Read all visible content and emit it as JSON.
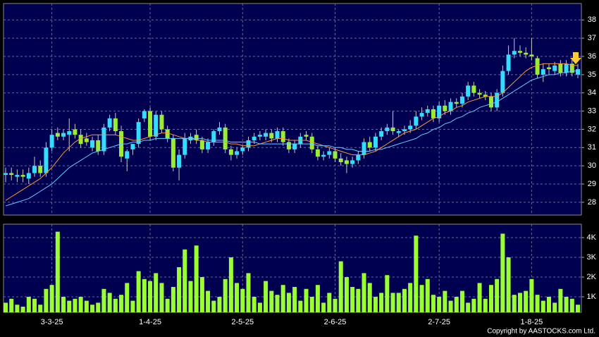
{
  "chart_data": [
    {
      "type": "candlestick",
      "ylim": [
        27.3,
        38.9
      ],
      "yticks": [
        28,
        29,
        30,
        31,
        32,
        33,
        34,
        35,
        36,
        37,
        38
      ],
      "grid": true,
      "up_color": "#33ddff",
      "down_color": "#99ee33",
      "wick_color": "#c8c8c8",
      "open": [
        29.5,
        29.6,
        29.4,
        29.5,
        29.3,
        29.6,
        30.0,
        29.6,
        31.0,
        31.8,
        31.6,
        31.7,
        32.0,
        31.7,
        31.5,
        31.0,
        31.4,
        30.8,
        32.1,
        32.6,
        31.9,
        30.4,
        30.9,
        31.2,
        32.6,
        33.0,
        31.6,
        32.8,
        32.0,
        31.5,
        29.9,
        30.6,
        31.4,
        31.7,
        31.4,
        30.9,
        31.3,
        31.9,
        32.1,
        30.9,
        30.6,
        30.8,
        31.0,
        31.4,
        31.6,
        31.6,
        31.8,
        31.5,
        31.9,
        31.3,
        30.9,
        31.2,
        31.7,
        31.6,
        30.9,
        30.5,
        30.6,
        30.8,
        30.4,
        30.3,
        30.1,
        30.3,
        30.6,
        31.3,
        31.0,
        31.6,
        31.9,
        32.1,
        31.8,
        31.9,
        32.0,
        32.2,
        32.7,
        32.9,
        33.1,
        32.6,
        33.3,
        33.0,
        33.5,
        33.4,
        33.8,
        34.4,
        34.0,
        33.9,
        33.8,
        33.2,
        34.0,
        35.2,
        36.1,
        36.3,
        36.2,
        36.1,
        35.9,
        35.0,
        35.4,
        35.2,
        35.6,
        35.1,
        35.6,
        35.0
      ],
      "high": [
        29.9,
        29.9,
        29.8,
        29.8,
        29.9,
        30.5,
        30.3,
        31.3,
        32.0,
        32.1,
        32.0,
        32.6,
        32.3,
        32.0,
        31.8,
        31.6,
        31.7,
        32.3,
        32.8,
        32.9,
        32.2,
        30.9,
        31.2,
        32.6,
        33.1,
        33.2,
        33.0,
        33.0,
        32.2,
        31.7,
        30.9,
        31.8,
        31.8,
        32.0,
        31.6,
        31.5,
        32.0,
        32.4,
        32.3,
        31.1,
        31.0,
        31.1,
        31.6,
        31.8,
        31.9,
        32.0,
        32.0,
        32.1,
        32.1,
        31.5,
        31.4,
        31.8,
        31.9,
        31.8,
        31.1,
        30.8,
        31.0,
        31.0,
        30.7,
        30.5,
        30.5,
        30.8,
        31.5,
        31.6,
        31.8,
        32.1,
        32.3,
        33.0,
        32.0,
        32.2,
        32.5,
        33.0,
        33.2,
        33.3,
        33.3,
        33.5,
        33.6,
        33.7,
        33.7,
        34.0,
        34.6,
        34.6,
        34.2,
        34.1,
        34.0,
        34.2,
        35.5,
        36.6,
        37.0,
        36.6,
        36.5,
        37.0,
        36.0,
        35.6,
        35.6,
        35.7,
        35.8,
        35.8,
        35.8,
        35.6
      ],
      "low": [
        29.1,
        29.2,
        29.1,
        29.1,
        29.0,
        29.4,
        29.4,
        29.4,
        30.8,
        31.4,
        31.4,
        30.8,
        31.5,
        31.0,
        31.1,
        30.8,
        30.6,
        30.6,
        31.9,
        31.7,
        30.2,
        29.7,
        30.6,
        31.0,
        32.4,
        31.4,
        31.4,
        31.8,
        31.3,
        29.7,
        29.2,
        30.4,
        31.2,
        31.2,
        30.7,
        30.7,
        31.1,
        31.7,
        30.7,
        30.3,
        30.4,
        30.6,
        30.8,
        31.2,
        31.4,
        31.4,
        31.3,
        31.3,
        31.1,
        30.7,
        30.7,
        31.0,
        31.4,
        30.7,
        30.3,
        30.3,
        30.4,
        30.2,
        30.0,
        29.6,
        29.9,
        30.1,
        30.4,
        30.8,
        30.8,
        31.4,
        31.7,
        31.7,
        31.6,
        31.7,
        31.8,
        32.0,
        32.5,
        32.7,
        32.4,
        32.4,
        32.8,
        32.8,
        33.2,
        33.2,
        33.6,
        33.8,
        33.7,
        33.6,
        33.0,
        33.0,
        33.8,
        35.0,
        35.9,
        36.0,
        35.9,
        35.8,
        34.8,
        34.6,
        35.0,
        35.0,
        34.9,
        34.9,
        34.9,
        34.8
      ],
      "close": [
        29.6,
        29.5,
        29.5,
        29.4,
        29.6,
        30.0,
        29.6,
        31.0,
        31.7,
        31.6,
        31.8,
        31.9,
        31.7,
        31.2,
        31.3,
        31.4,
        30.8,
        32.1,
        32.6,
        31.9,
        30.5,
        30.8,
        31.2,
        32.4,
        33.0,
        31.6,
        32.8,
        32.0,
        31.5,
        29.9,
        30.6,
        31.5,
        31.6,
        31.4,
        30.9,
        31.3,
        31.9,
        32.1,
        30.9,
        30.6,
        30.8,
        31.0,
        31.4,
        31.6,
        31.7,
        31.8,
        31.5,
        31.9,
        31.3,
        30.9,
        31.2,
        31.6,
        31.6,
        30.9,
        30.5,
        30.6,
        30.8,
        30.4,
        30.2,
        30.1,
        30.3,
        30.6,
        31.3,
        31.0,
        31.6,
        31.9,
        32.1,
        31.9,
        31.9,
        32.0,
        32.2,
        32.7,
        32.9,
        33.1,
        32.6,
        33.3,
        33.0,
        33.5,
        33.4,
        33.8,
        34.4,
        34.0,
        33.9,
        33.8,
        33.2,
        34.0,
        35.2,
        36.1,
        36.3,
        36.2,
        36.1,
        36.0,
        35.0,
        35.3,
        35.3,
        35.5,
        35.1,
        35.6,
        35.1,
        35.3
      ],
      "lines": [
        {
          "color": "#ff9933",
          "values": [
            28.1,
            28.3,
            28.5,
            28.7,
            28.9,
            29.1,
            29.3,
            29.6,
            29.9,
            30.3,
            30.7,
            31.0,
            31.3,
            31.5,
            31.6,
            31.7,
            31.7,
            31.7,
            31.7,
            31.7,
            31.6,
            31.5,
            31.4,
            31.4,
            31.5,
            31.6,
            31.7,
            31.8,
            31.8,
            31.7,
            31.6,
            31.5,
            31.5,
            31.4,
            31.4,
            31.3,
            31.3,
            31.3,
            31.3,
            31.2,
            31.2,
            31.1,
            31.1,
            31.1,
            31.2,
            31.3,
            31.4,
            31.5,
            31.5,
            31.4,
            31.4,
            31.4,
            31.4,
            31.3,
            31.2,
            31.1,
            31.0,
            30.9,
            30.8,
            30.7,
            30.6,
            30.6,
            30.6,
            30.7,
            30.8,
            31.0,
            31.2,
            31.4,
            31.6,
            31.8,
            31.9,
            32.0,
            32.2,
            32.4,
            32.6,
            32.7,
            32.9,
            33.0,
            33.2,
            33.3,
            33.5,
            33.6,
            33.7,
            33.8,
            33.8,
            33.8,
            34.0,
            34.3,
            34.6,
            34.9,
            35.2,
            35.4,
            35.5,
            35.6,
            35.6,
            35.6,
            35.6,
            35.6,
            35.5,
            35.5
          ]
        },
        {
          "color": "#66ccff",
          "values": [
            27.8,
            27.9,
            28.0,
            28.1,
            28.2,
            28.4,
            28.6,
            28.8,
            29.0,
            29.3,
            29.6,
            29.9,
            30.1,
            30.3,
            30.5,
            30.7,
            30.8,
            30.9,
            31.0,
            31.1,
            31.2,
            31.2,
            31.3,
            31.3,
            31.4,
            31.4,
            31.5,
            31.5,
            31.5,
            31.5,
            31.5,
            31.5,
            31.5,
            31.5,
            31.5,
            31.4,
            31.4,
            31.4,
            31.4,
            31.3,
            31.3,
            31.3,
            31.3,
            31.3,
            31.2,
            31.2,
            31.2,
            31.2,
            31.2,
            31.2,
            31.2,
            31.2,
            31.2,
            31.2,
            31.1,
            31.1,
            31.1,
            31.0,
            31.0,
            30.9,
            30.9,
            30.8,
            30.8,
            30.8,
            30.9,
            30.9,
            31.0,
            31.1,
            31.2,
            31.3,
            31.4,
            31.5,
            31.7,
            31.8,
            32.0,
            32.1,
            32.3,
            32.4,
            32.6,
            32.7,
            32.9,
            33.0,
            33.2,
            33.3,
            33.4,
            33.5,
            33.7,
            33.9,
            34.1,
            34.3,
            34.5,
            34.7,
            34.8,
            34.9,
            35.0,
            35.0,
            35.1,
            35.1,
            35.2,
            35.2
          ]
        }
      ]
    },
    {
      "type": "bar",
      "color": "#99ff33",
      "ylim": [
        214,
        4680
      ],
      "yticks": [
        {
          "value": 1000,
          "label": "1K"
        },
        {
          "value": 2000,
          "label": "2K"
        },
        {
          "value": 3000,
          "label": "3K"
        },
        {
          "value": 4000,
          "label": "4K"
        }
      ],
      "categories": [
        null,
        null,
        null,
        null,
        null,
        null,
        null,
        null,
        "3-3-25",
        null,
        null,
        null,
        null,
        null,
        null,
        null,
        null,
        null,
        null,
        null,
        null,
        null,
        null,
        null,
        null,
        "1-4-25",
        null,
        null,
        null,
        null,
        null,
        null,
        null,
        null,
        null,
        null,
        null,
        null,
        null,
        null,
        null,
        "2-5-25",
        null,
        null,
        null,
        null,
        null,
        null,
        null,
        null,
        null,
        null,
        null,
        null,
        null,
        null,
        null,
        "2-6-25",
        null,
        null,
        null,
        null,
        null,
        null,
        null,
        null,
        null,
        null,
        null,
        null,
        null,
        null,
        null,
        null,
        null,
        "2-7-25",
        null,
        null,
        null,
        null,
        null,
        null,
        null,
        null,
        null,
        null,
        null,
        null,
        null,
        null,
        null,
        "1-8-25",
        null,
        null,
        null,
        null,
        null,
        null,
        null,
        null
      ],
      "values": [
        700,
        900,
        600,
        500,
        1000,
        900,
        600,
        1400,
        1600,
        4300,
        1000,
        800,
        900,
        1000,
        800,
        600,
        700,
        1400,
        1200,
        900,
        1100,
        1700,
        800,
        2300,
        1900,
        1800,
        2200,
        1700,
        900,
        1500,
        2500,
        3400,
        1800,
        3600,
        2000,
        1300,
        800,
        1000,
        1900,
        3000,
        1700,
        1400,
        2200,
        1000,
        700,
        1800,
        1300,
        1100,
        1600,
        1200,
        1500,
        800,
        1400,
        1000,
        1600,
        700,
        1200,
        900,
        2800,
        2000,
        1500,
        1400,
        2200,
        1700,
        1000,
        1200,
        2100,
        1200,
        1200,
        1400,
        1700,
        4100,
        1600,
        1900,
        1100,
        1000,
        1300,
        800,
        1000,
        1300,
        700,
        900,
        1700,
        900,
        1600,
        1900,
        4200,
        3000,
        1100,
        1200,
        1300,
        1900,
        1100,
        800,
        1000,
        700,
        1400,
        1000,
        900,
        600
      ],
      "grid": true
    }
  ],
  "footer": "Copyright by AASTOCKS.com Ltd."
}
